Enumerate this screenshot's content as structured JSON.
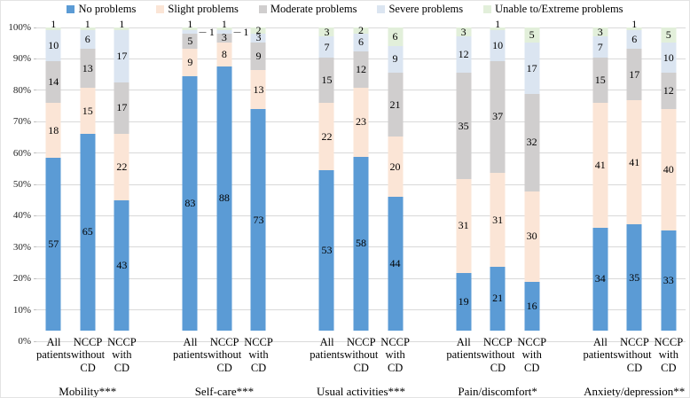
{
  "figure": {
    "background": "#ffffff",
    "border_color": "#e3e3e3",
    "text_color": "#000000"
  },
  "legend": {
    "position": "top-center",
    "items": [
      {
        "label": "No problems",
        "color": "#5b9bd5"
      },
      {
        "label": "Slight problems",
        "color": "#fbe5d6"
      },
      {
        "label": "Moderate problems",
        "color": "#d0cece"
      },
      {
        "label": "Severe problems",
        "color": "#dbe5f1"
      },
      {
        "label": "Unable to/Extreme problems",
        "color": "#e2efda"
      }
    ]
  },
  "chart_data": {
    "type": "bar",
    "subtype": "percent-stacked-column",
    "title": "",
    "xlabel": "",
    "ylabel": "",
    "ylim": [
      0,
      100
    ],
    "grid": true,
    "gridline_color": "#d9d9d9",
    "y_ticks_top_to_bottom": [
      "100%",
      "90%",
      "80%",
      "70%",
      "60%",
      "50%",
      "40%",
      "30%",
      "20%",
      "10%",
      "0%"
    ],
    "series_names": [
      "No problems",
      "Slight problems",
      "Moderate problems",
      "Severe problems",
      "Unable to/Extreme problems"
    ],
    "series_colors": [
      "#5b9bd5",
      "#fbe5d6",
      "#d0cece",
      "#dbe5f1",
      "#e2efda"
    ],
    "bar_x_labels": [
      "All patients",
      "NCCP without CD",
      "NCCP with CD"
    ],
    "groups": [
      {
        "title": "Mobility***",
        "bars": [
          {
            "x_label": "All patients",
            "values": [
              57,
              18,
              14,
              10,
              1
            ],
            "label_placement": [
              "in",
              "in",
              "in",
              "in",
              "above"
            ]
          },
          {
            "x_label": "NCCP without CD",
            "values": [
              65,
              15,
              13,
              6,
              1
            ],
            "label_placement": [
              "in",
              "in",
              "in",
              "in",
              "above"
            ]
          },
          {
            "x_label": "NCCP with CD",
            "values": [
              43,
              22,
              17,
              17,
              1
            ],
            "label_placement": [
              "in",
              "in",
              "in",
              "in",
              "above"
            ]
          }
        ]
      },
      {
        "title": "Self-care***",
        "bars": [
          {
            "x_label": "All patients",
            "values": [
              83,
              9,
              5,
              1,
              1
            ],
            "label_placement": [
              "in",
              "in",
              "in",
              "right",
              "above"
            ]
          },
          {
            "x_label": "NCCP without CD",
            "values": [
              88,
              8,
              3,
              1,
              1
            ],
            "label_placement": [
              "in",
              "in",
              "in",
              "right",
              "above"
            ]
          },
          {
            "x_label": "NCCP with CD",
            "values": [
              73,
              13,
              9,
              3,
              2
            ],
            "label_placement": [
              "in",
              "in",
              "in",
              "in",
              "in"
            ]
          }
        ]
      },
      {
        "title": "Usual activities***",
        "bars": [
          {
            "x_label": "All patients",
            "values": [
              53,
              22,
              15,
              7,
              3
            ],
            "label_placement": [
              "in",
              "in",
              "in",
              "in",
              "in"
            ]
          },
          {
            "x_label": "NCCP without CD",
            "values": [
              58,
              23,
              12,
              6,
              2
            ],
            "label_placement": [
              "in",
              "in",
              "in",
              "in",
              "in"
            ]
          },
          {
            "x_label": "NCCP with CD",
            "values": [
              44,
              20,
              21,
              9,
              6
            ],
            "label_placement": [
              "in",
              "in",
              "in",
              "in",
              "in"
            ]
          }
        ]
      },
      {
        "title": "Pain/discomfort*",
        "bars": [
          {
            "x_label": "All patients",
            "values": [
              19,
              31,
              35,
              12,
              3
            ],
            "label_placement": [
              "in",
              "in",
              "in",
              "in",
              "in"
            ]
          },
          {
            "x_label": "NCCP without CD",
            "values": [
              21,
              31,
              37,
              10,
              1
            ],
            "label_placement": [
              "in",
              "in",
              "in",
              "in",
              "above"
            ]
          },
          {
            "x_label": "NCCP with CD",
            "values": [
              16,
              30,
              32,
              17,
              5
            ],
            "label_placement": [
              "in",
              "in",
              "in",
              "in",
              "in"
            ]
          }
        ]
      },
      {
        "title": "Anxiety/depression**",
        "bars": [
          {
            "x_label": "All patients",
            "values": [
              34,
              41,
              15,
              7,
              3
            ],
            "label_placement": [
              "in",
              "in",
              "in",
              "in",
              "in"
            ]
          },
          {
            "x_label": "NCCP without CD",
            "values": [
              35,
              41,
              17,
              6,
              1
            ],
            "label_placement": [
              "in",
              "in",
              "in",
              "in",
              "above"
            ]
          },
          {
            "x_label": "NCCP with CD",
            "values": [
              33,
              40,
              12,
              10,
              5
            ],
            "label_placement": [
              "in",
              "in",
              "in",
              "in",
              "in"
            ]
          }
        ]
      }
    ]
  }
}
